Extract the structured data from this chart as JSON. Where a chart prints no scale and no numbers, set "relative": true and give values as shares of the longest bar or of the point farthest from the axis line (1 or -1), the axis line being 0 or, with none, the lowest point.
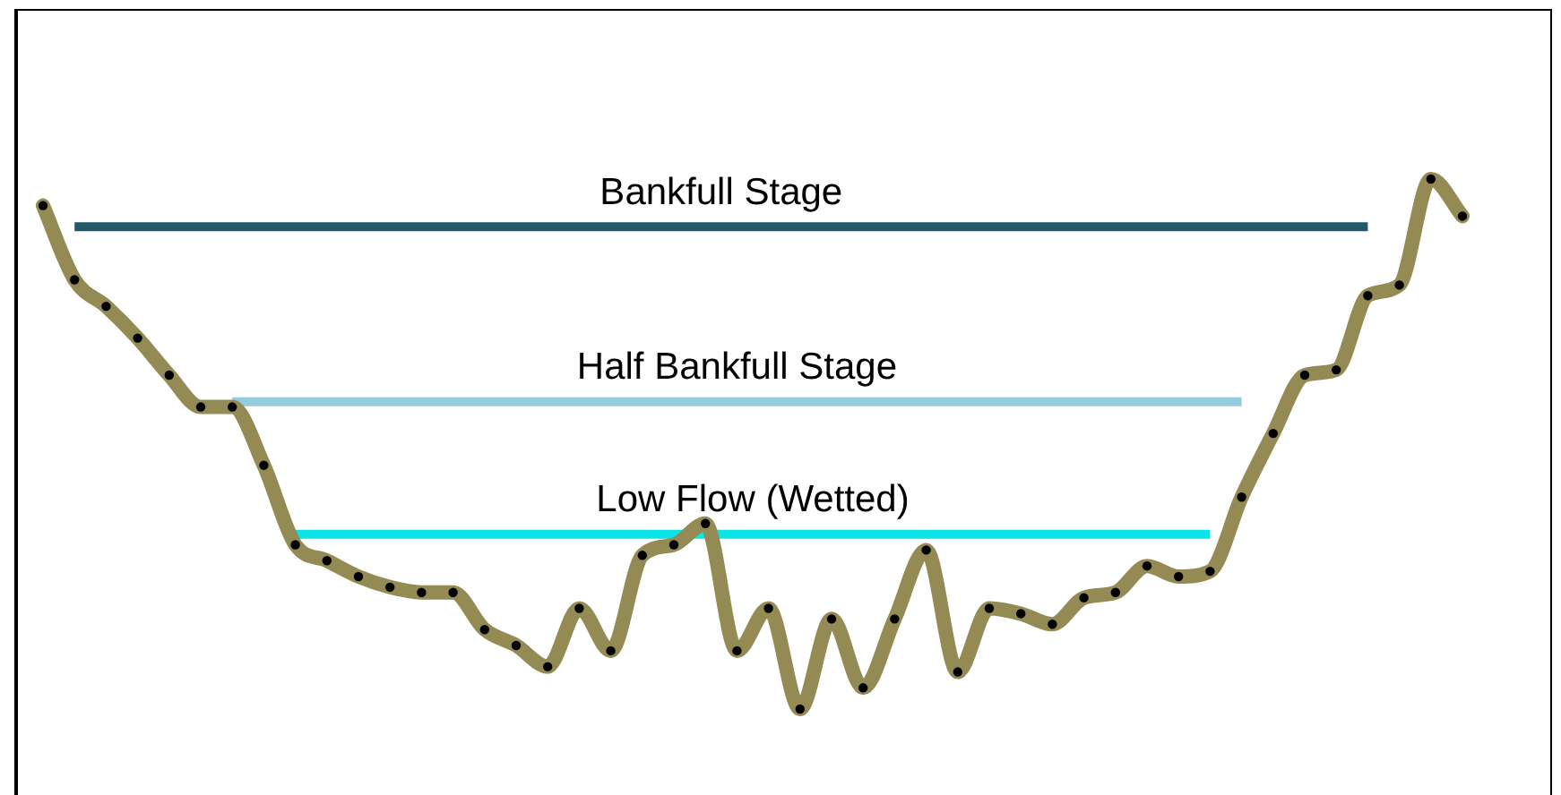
{
  "chart_data": {
    "type": "line",
    "relative": true,
    "legend": false,
    "tick_labels": false,
    "categories": [
      null,
      null,
      null,
      null,
      null,
      null,
      null,
      null,
      null,
      null,
      null,
      null,
      null,
      null,
      null,
      null,
      null,
      null,
      null,
      null,
      null,
      null,
      null,
      null,
      null,
      null,
      null,
      null,
      null,
      null,
      null,
      null,
      null,
      null,
      null,
      null,
      null,
      null,
      null,
      null,
      null,
      null,
      null,
      null,
      null,
      null
    ],
    "series": [
      {
        "color": "#948a54",
        "marker": "circle",
        "line_style": "solid",
        "values": [
          0.95,
          0.81,
          0.76,
          0.7,
          0.63,
          0.57,
          0.57,
          0.46,
          0.31,
          0.28,
          0.25,
          0.23,
          0.22,
          0.22,
          0.15,
          0.12,
          0.08,
          0.19,
          0.11,
          0.29,
          0.31,
          0.35,
          0.11,
          0.19,
          0,
          0.17,
          0.04,
          0.17,
          0.3,
          0.07,
          0.19,
          0.18,
          0.16,
          0.21,
          0.22,
          0.27,
          0.25,
          0.26,
          0.4,
          0.52,
          0.63,
          0.64,
          0.78,
          0.8,
          1,
          0.93
        ]
      },
      {
        "name": "Bankfull Stage",
        "color": "#215968",
        "marker": "none",
        "line_style": "solid",
        "values": [
          null,
          0.91,
          0.91,
          0.91,
          0.91,
          0.91,
          0.91,
          0.91,
          0.91,
          0.91,
          0.91,
          0.91,
          0.91,
          0.91,
          0.91,
          0.91,
          0.91,
          0.91,
          0.91,
          0.91,
          0.91,
          0.91,
          0.91,
          0.91,
          0.91,
          0.91,
          0.91,
          0.91,
          0.91,
          0.91,
          0.91,
          0.91,
          0.91,
          0.91,
          0.91,
          0.91,
          0.91,
          0.91,
          0.91,
          0.91,
          0.91,
          0.91,
          0.91,
          null,
          null,
          null
        ]
      },
      {
        "name": "Half Bankfull Stage",
        "color": "#93cddd",
        "marker": "none",
        "line_style": "solid",
        "values": [
          null,
          null,
          null,
          null,
          null,
          null,
          0.58,
          0.58,
          0.58,
          0.58,
          0.58,
          0.58,
          0.58,
          0.58,
          0.58,
          0.58,
          0.58,
          0.58,
          0.58,
          0.58,
          0.58,
          0.58,
          0.58,
          0.58,
          0.58,
          0.58,
          0.58,
          0.58,
          0.58,
          0.58,
          0.58,
          0.58,
          0.58,
          0.58,
          0.58,
          0.58,
          0.58,
          0.58,
          0.58,
          null,
          null,
          null,
          null,
          null,
          null,
          null
        ]
      },
      {
        "name": "Low Flow (Wetted)",
        "color": "#0ce3e6",
        "marker": "none",
        "line_style": "solid",
        "values": [
          null,
          null,
          null,
          null,
          null,
          null,
          null,
          null,
          0.33,
          0.33,
          0.33,
          0.33,
          0.33,
          0.33,
          0.33,
          0.33,
          0.33,
          0.33,
          0.33,
          0.33,
          0.33,
          0.33,
          0.33,
          0.33,
          0.33,
          0.33,
          0.33,
          0.33,
          0.33,
          0.33,
          0.33,
          0.33,
          0.33,
          0.33,
          0.33,
          0.33,
          0.33,
          0.33,
          null,
          null,
          null,
          null,
          null,
          null,
          null,
          null
        ]
      }
    ]
  }
}
